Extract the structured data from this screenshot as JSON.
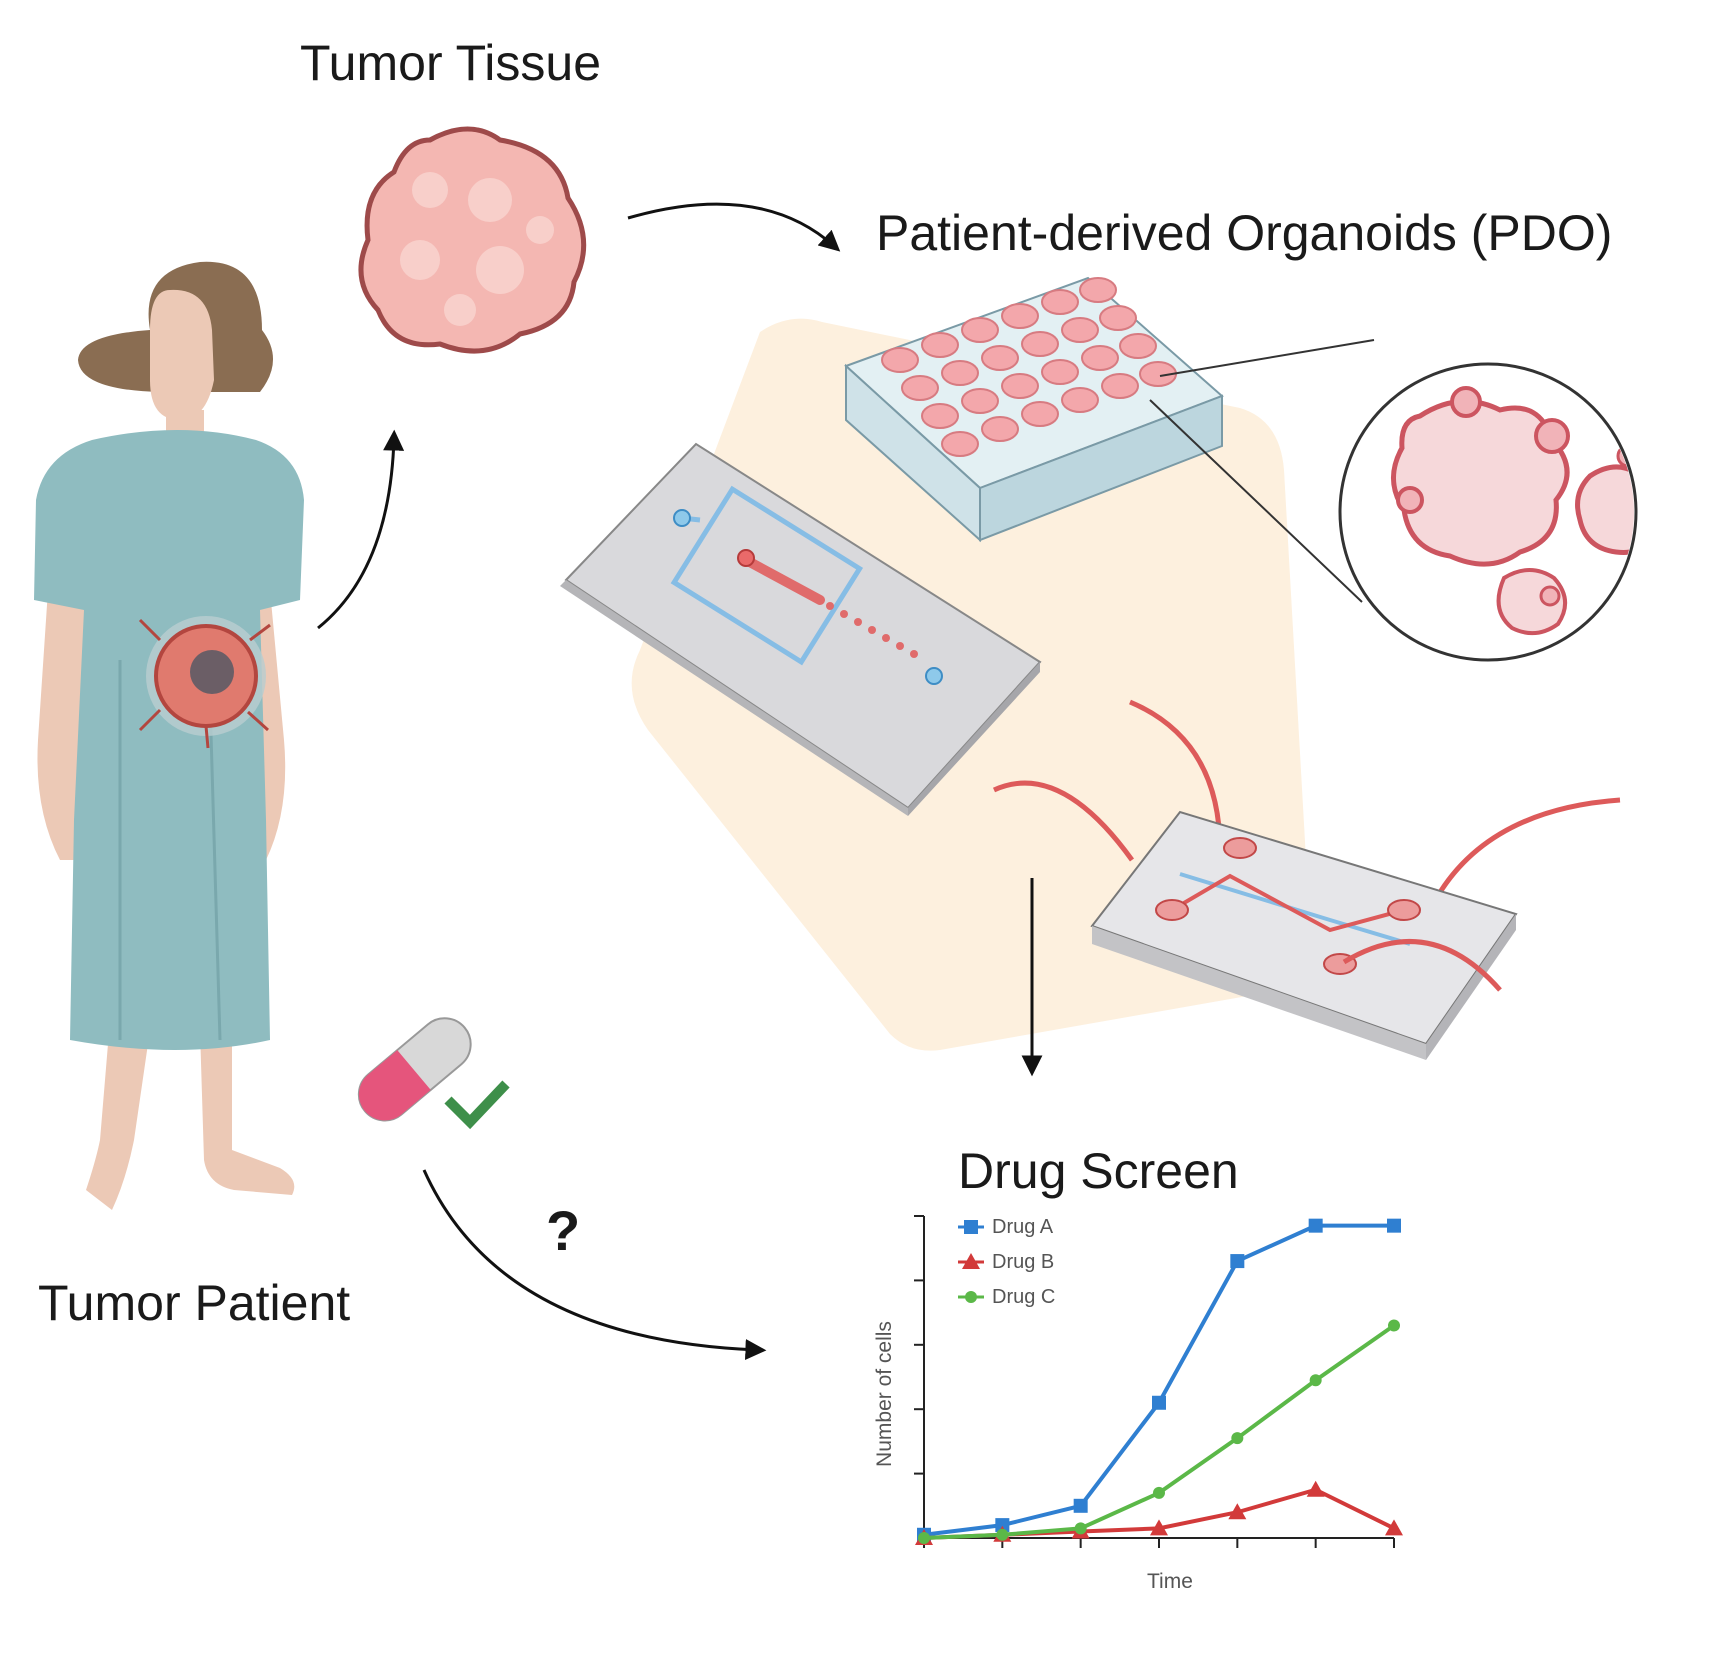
{
  "labels": {
    "tumor_tissue": "Tumor Tissue",
    "pdo": "Patient-derived Organoids (PDO)",
    "tumor_patient": "Tumor Patient",
    "drug_screen": "Drug Screen",
    "question": "?"
  },
  "colors": {
    "drug_a": "#2f7fd1",
    "drug_b": "#d23a3a",
    "drug_c": "#5bb848",
    "gown": "#8fbcc0",
    "skin": "#ecc9b6",
    "hair": "#8a6d52",
    "tumor": "#e9a0a0",
    "background_shape": "#fdf0de"
  },
  "icons": [
    "patient-figure",
    "tumor-tissue-icon",
    "well-plate-icon",
    "microfluidic-chip-icon",
    "organ-chip-icon",
    "magnified-organoids-icon",
    "pill-icon",
    "check-icon"
  ],
  "chart_data": {
    "type": "line",
    "title": "",
    "xlabel": "Time",
    "ylabel": "Number of cells",
    "x": [
      0,
      1,
      2,
      3,
      4,
      5,
      6
    ],
    "ylim": [
      0,
      100
    ],
    "xlim": [
      0,
      6
    ],
    "grid": false,
    "legend_position": "top-left",
    "series": [
      {
        "name": "Drug A",
        "marker": "square",
        "values": [
          1,
          4,
          10,
          42,
          86,
          97,
          97
        ]
      },
      {
        "name": "Drug B",
        "marker": "triangle",
        "values": [
          0,
          1,
          2,
          3,
          8,
          15,
          3
        ]
      },
      {
        "name": "Drug C",
        "marker": "circle",
        "values": [
          0,
          1,
          3,
          14,
          31,
          49,
          66
        ]
      }
    ]
  }
}
